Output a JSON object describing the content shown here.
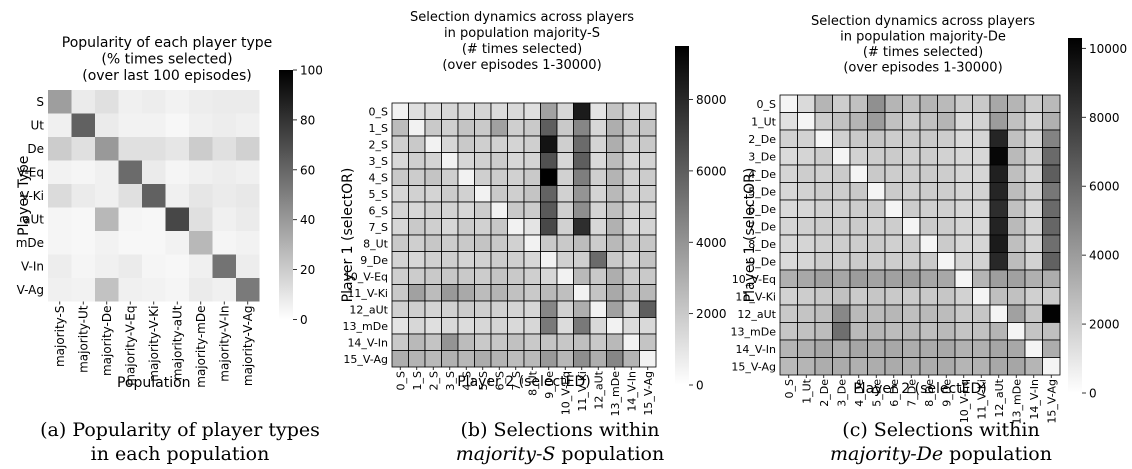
{
  "chart_data": [
    {
      "type": "heatmap",
      "title_lines": [
        "Popularity of each player type",
        "(% times selected)",
        "(over last 100 episodes)"
      ],
      "xlabel": "Population",
      "ylabel": "Player Type",
      "x_categories": [
        "majority-S",
        "majority-Ut",
        "majority-De",
        "majority-V-Eq",
        "majority-V-Ki",
        "majority-aUt",
        "majority-mDe",
        "majority-V-In",
        "majority-V-Ag"
      ],
      "y_categories": [
        "S",
        "Ut",
        "De",
        "V-Eq",
        "V-Ki",
        "aUt",
        "mDe",
        "V-In",
        "V-Ag"
      ],
      "colorbar": {
        "min": 0,
        "max": 100,
        "ticks": [
          0,
          20,
          40,
          60,
          80,
          100
        ]
      },
      "values": [
        [
          38,
          8,
          12,
          6,
          7,
          5,
          7,
          8,
          8
        ],
        [
          6,
          62,
          8,
          5,
          5,
          3,
          6,
          7,
          6
        ],
        [
          20,
          12,
          40,
          12,
          12,
          10,
          20,
          12,
          18
        ],
        [
          5,
          4,
          6,
          58,
          8,
          4,
          6,
          7,
          6
        ],
        [
          14,
          8,
          6,
          12,
          62,
          6,
          10,
          8,
          9
        ],
        [
          4,
          3,
          28,
          4,
          3,
          72,
          12,
          6,
          8
        ],
        [
          4,
          3,
          5,
          3,
          3,
          5,
          28,
          4,
          5
        ],
        [
          7,
          4,
          6,
          8,
          4,
          3,
          6,
          55,
          7
        ],
        [
          6,
          5,
          24,
          6,
          5,
          4,
          8,
          6,
          52
        ]
      ]
    },
    {
      "type": "heatmap",
      "title_lines": [
        "Selection dynamics across players",
        "in population majority-S",
        "(# times selected)",
        "(over episodes 1-30000)"
      ],
      "xlabel": "Player 2 (selectED)",
      "ylabel": "Player 1 (selectOR)",
      "x_categories": [
        "0_S",
        "1_S",
        "2_S",
        "3_S",
        "4_S",
        "5_S",
        "6_S",
        "7_S",
        "8_Ut",
        "9_De",
        "10_V-Eq",
        "11_V-Ki",
        "12_aUt",
        "13_mDe",
        "14_V-In",
        "15_V-Ag"
      ],
      "y_categories": [
        "0_S",
        "1_S",
        "2_S",
        "3_S",
        "4_S",
        "5_S",
        "6_S",
        "7_S",
        "8_Ut",
        "9_De",
        "10_V-Eq",
        "11_V-Ki",
        "12_aUt",
        "13_mDe",
        "14_V-In",
        "15_V-Ag"
      ],
      "colorbar": {
        "min": 0,
        "max": 9500,
        "ticks": [
          0,
          2000,
          4000,
          6000,
          8000
        ]
      },
      "values": [
        [
          500,
          1200,
          1300,
          1500,
          1400,
          1600,
          1300,
          1400,
          1200,
          3500,
          1500,
          8500,
          1000,
          2200,
          1400,
          1500
        ],
        [
          2500,
          500,
          2000,
          1800,
          2200,
          2000,
          3500,
          1800,
          2000,
          6000,
          2000,
          4500,
          1500,
          3000,
          2000,
          2200
        ],
        [
          1800,
          2000,
          500,
          1500,
          2000,
          1800,
          1700,
          1600,
          1800,
          8800,
          1800,
          5500,
          1600,
          3000,
          1800,
          2000
        ],
        [
          1400,
          1800,
          1600,
          500,
          1500,
          1700,
          1900,
          1500,
          1600,
          6500,
          1500,
          6000,
          1400,
          2500,
          1500,
          1600
        ],
        [
          2000,
          1900,
          2200,
          1800,
          500,
          1800,
          1900,
          1700,
          2000,
          9500,
          1700,
          4800,
          1800,
          2800,
          1700,
          1900
        ],
        [
          1500,
          1700,
          1600,
          1900,
          1700,
          500,
          2000,
          1800,
          2200,
          5800,
          1700,
          4000,
          1600,
          2600,
          1700,
          1800
        ],
        [
          1600,
          1500,
          1700,
          1600,
          1500,
          1900,
          500,
          2000,
          1900,
          6200,
          1800,
          4200,
          1600,
          2400,
          1600,
          1700
        ],
        [
          1500,
          2000,
          1800,
          1500,
          1900,
          1700,
          2100,
          500,
          1000,
          6800,
          1700,
          7800,
          1500,
          2900,
          1500,
          1600
        ],
        [
          2000,
          1800,
          2100,
          1900,
          2000,
          2200,
          2000,
          1700,
          500,
          2000,
          2000,
          2500,
          1900,
          2600,
          2000,
          2100
        ],
        [
          1600,
          1500,
          1700,
          1800,
          1600,
          1700,
          1900,
          1800,
          1500,
          500,
          1700,
          1800,
          5500,
          2000,
          1600,
          2200
        ],
        [
          1800,
          1900,
          2000,
          2100,
          2000,
          1900,
          2200,
          2000,
          1800,
          1500,
          500,
          2600,
          2000,
          3000,
          1900,
          2000
        ],
        [
          2000,
          3500,
          2500,
          3800,
          3200,
          2500,
          2800,
          2300,
          2000,
          2600,
          2400,
          500,
          2200,
          3200,
          2300,
          2600
        ],
        [
          1700,
          1800,
          1600,
          1700,
          1900,
          1800,
          1700,
          1600,
          1500,
          4500,
          1700,
          3000,
          500,
          3500,
          1800,
          6000
        ],
        [
          1000,
          1500,
          1200,
          1400,
          1300,
          1500,
          1600,
          1400,
          1500,
          5000,
          1300,
          5000,
          1400,
          500,
          1300,
          1400
        ],
        [
          2000,
          2600,
          2200,
          4000,
          2500,
          2000,
          2100,
          2300,
          2000,
          2200,
          2100,
          2400,
          2000,
          2600,
          500,
          2200
        ],
        [
          3000,
          2800,
          2600,
          2900,
          2700,
          3100,
          2800,
          2500,
          2600,
          3800,
          2700,
          4200,
          3000,
          4500,
          2800,
          500
        ]
      ]
    },
    {
      "type": "heatmap",
      "title_lines": [
        "Selection dynamics across players",
        "in population majority-De",
        "(# times selected)",
        "(over episodes 1-30000)"
      ],
      "xlabel": "Player 2 (selectED)",
      "ylabel": "Player 1 (selectOR)",
      "x_categories": [
        "0_S",
        "1_Ut",
        "2_De",
        "3_De",
        "4_De",
        "5_De",
        "6_De",
        "7_De",
        "8_De",
        "9_De",
        "10_V-Eq",
        "11_V-Ki",
        "12_aUt",
        "13_mDe",
        "14_V-In",
        "15_V-Ag"
      ],
      "y_categories": [
        "0_S",
        "1_Ut",
        "2_De",
        "3_De",
        "4_De",
        "5_De",
        "6_De",
        "7_De",
        "8_De",
        "9_De",
        "10_V-Eq",
        "11_V-Ki",
        "12_aUt",
        "13_mDe",
        "14_V-In",
        "15_V-Ag"
      ],
      "colorbar": {
        "min": 0,
        "max": 10300,
        "ticks": [
          0,
          2000,
          4000,
          6000,
          8000,
          10000
        ]
      },
      "values": [
        [
          400,
          1500,
          3000,
          2000,
          2500,
          4500,
          3000,
          2500,
          3000,
          2800,
          2000,
          2200,
          3500,
          3000,
          2000,
          2800
        ],
        [
          1200,
          400,
          2000,
          2500,
          3000,
          4000,
          2500,
          2000,
          2500,
          3000,
          1500,
          1800,
          4000,
          2500,
          1600,
          3200
        ],
        [
          1800,
          1800,
          400,
          1900,
          2200,
          2300,
          2000,
          2100,
          2200,
          2000,
          1500,
          1700,
          8800,
          2500,
          1700,
          5000
        ],
        [
          1500,
          1700,
          2000,
          400,
          1800,
          2000,
          2100,
          1900,
          2000,
          1800,
          1600,
          1600,
          10000,
          2800,
          1800,
          6000
        ],
        [
          1700,
          2000,
          1900,
          2100,
          400,
          2200,
          2000,
          2000,
          2100,
          2000,
          1700,
          1700,
          9000,
          2600,
          1700,
          6500
        ],
        [
          1600,
          1800,
          2000,
          2000,
          2200,
          400,
          2100,
          1900,
          2000,
          2000,
          1700,
          1800,
          8800,
          2700,
          1800,
          5500
        ],
        [
          1500,
          1600,
          1800,
          1900,
          2000,
          2100,
          400,
          2000,
          1900,
          1900,
          1600,
          1700,
          8500,
          2500,
          1600,
          6000
        ],
        [
          1700,
          1900,
          2000,
          2000,
          2100,
          1900,
          2000,
          400,
          2100,
          2000,
          1700,
          1600,
          8900,
          2800,
          1700,
          6200
        ],
        [
          1600,
          1700,
          1900,
          2000,
          2000,
          2100,
          1900,
          2000,
          400,
          2100,
          1600,
          1700,
          9200,
          2600,
          1700,
          5800
        ],
        [
          1500,
          1700,
          2000,
          2000,
          2100,
          2000,
          2000,
          2000,
          2100,
          400,
          1700,
          1800,
          8700,
          2700,
          1800,
          6400
        ],
        [
          3200,
          3500,
          3800,
          3600,
          4000,
          3700,
          3800,
          3900,
          3600,
          3500,
          400,
          3000,
          3900,
          3800,
          3200,
          3300
        ],
        [
          1800,
          2000,
          2200,
          2500,
          2100,
          2300,
          2200,
          2100,
          2200,
          2300,
          1800,
          400,
          2600,
          2500,
          1900,
          2100
        ],
        [
          2200,
          2400,
          2600,
          4800,
          2800,
          2700,
          2900,
          2600,
          2800,
          2700,
          2200,
          2300,
          400,
          3800,
          2300,
          10200
        ],
        [
          2300,
          2500,
          2700,
          5800,
          2800,
          2900,
          2700,
          2800,
          2600,
          2800,
          2400,
          2500,
          3000,
          400,
          2400,
          2600
        ],
        [
          3000,
          3200,
          3500,
          3300,
          3600,
          3400,
          3500,
          3300,
          3400,
          3500,
          3100,
          3200,
          3600,
          3500,
          400,
          3300
        ],
        [
          2800,
          3000,
          3300,
          3400,
          3200,
          3300,
          3400,
          3200,
          3300,
          3400,
          3000,
          3100,
          3500,
          3600,
          3000,
          400
        ]
      ]
    }
  ],
  "captions": [
    {
      "lines": [
        "(a) Popularity of player types",
        "in each population"
      ]
    },
    {
      "line1": "(b) Selections within",
      "italic": "majority-S",
      "rest": " population"
    },
    {
      "line1": "(c) Selections within",
      "italic": "majority-De",
      "rest": " population"
    }
  ]
}
